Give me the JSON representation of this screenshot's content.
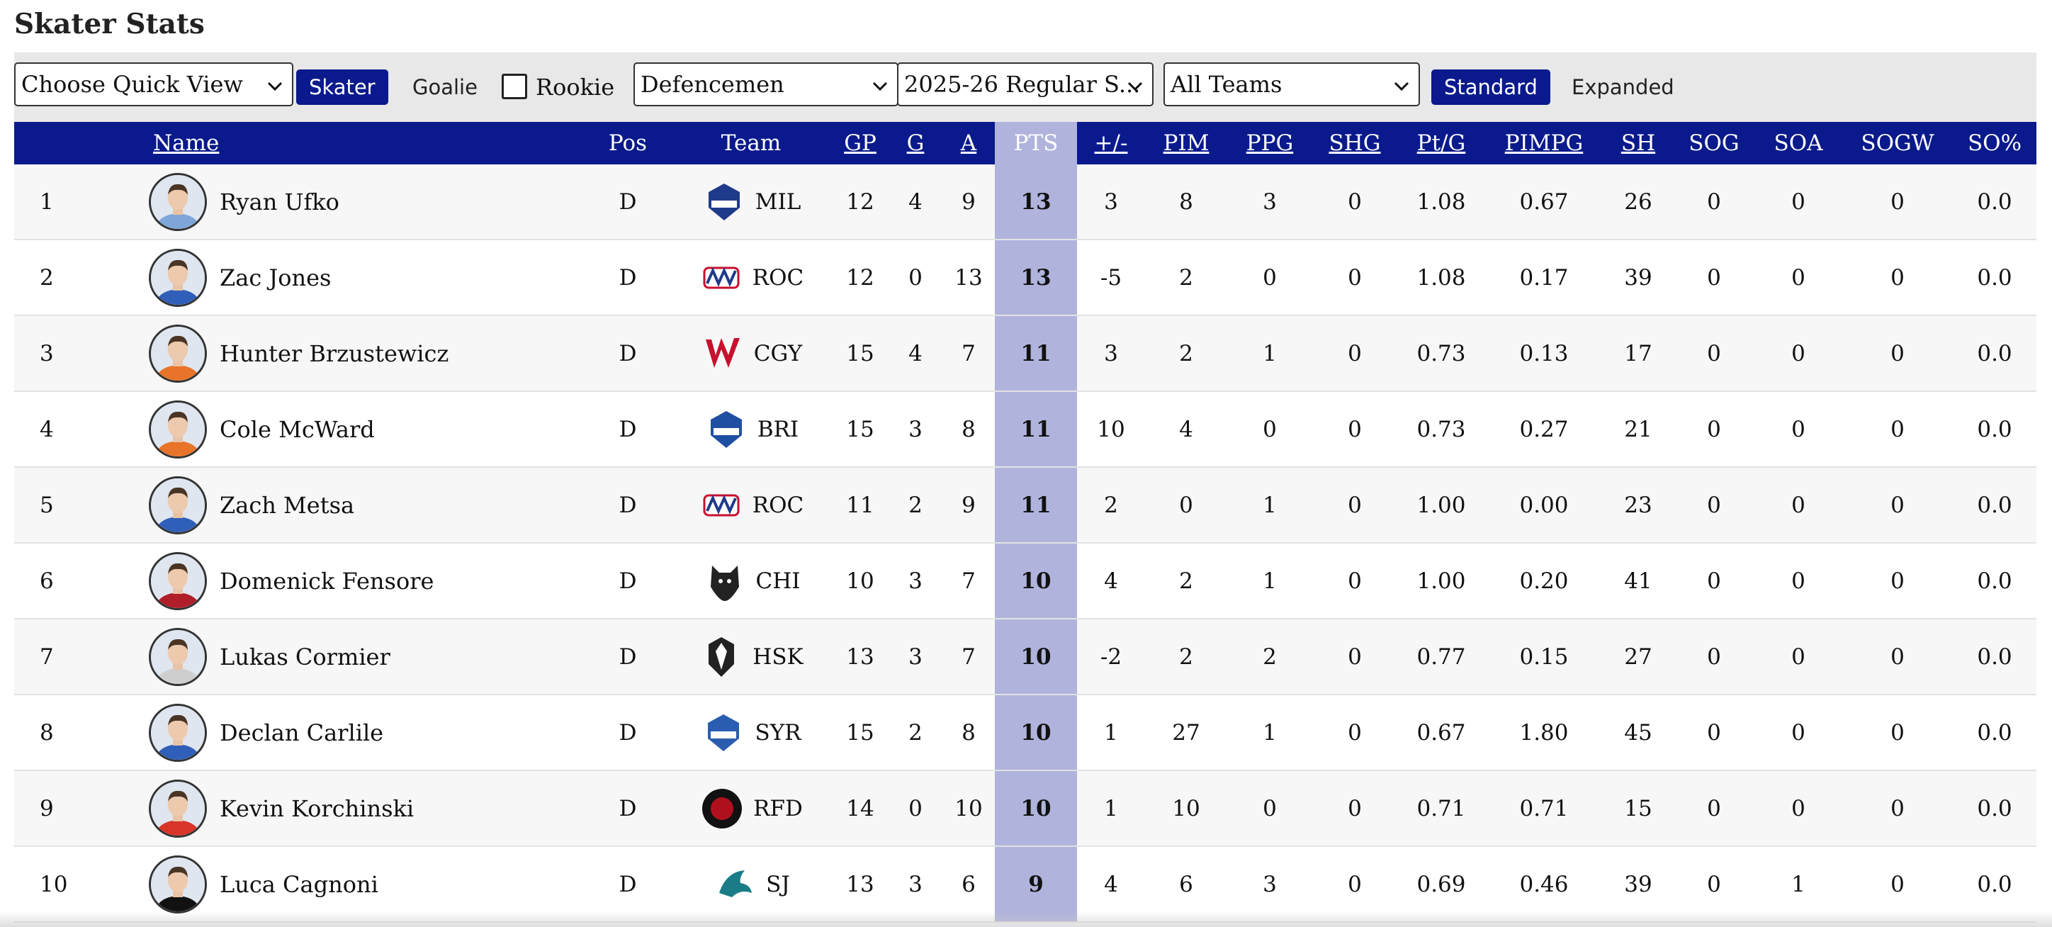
{
  "page_title": "Skater Stats",
  "toolbar": {
    "quick_view": "Choose Quick View",
    "skater_label": "Skater",
    "goalie_label": "Goalie",
    "rookie_label": "Rookie",
    "position": "Defencemen",
    "season": "2025-26 Regular S...",
    "teams": "All Teams",
    "standard_label": "Standard",
    "expanded_label": "Expanded"
  },
  "table": {
    "columns": [
      "",
      "Name",
      "Pos",
      "Team",
      "GP",
      "G",
      "A",
      "PTS",
      "+/-",
      "PIM",
      "PPG",
      "SHG",
      "Pt/G",
      "PIMPG",
      "SH",
      "SOG",
      "SOA",
      "SOGW",
      "SO%"
    ],
    "rows": [
      {
        "rank": "1",
        "name": "Ryan Ufko",
        "pos": "D",
        "team": "MIL",
        "gp": "12",
        "g": "4",
        "a": "9",
        "pts": "13",
        "pm": "3",
        "pim": "8",
        "ppg": "3",
        "shg": "0",
        "ptg": "1.08",
        "pimpg": "0.67",
        "sh": "26",
        "sog": "0",
        "soa": "0",
        "sogw": "0",
        "sopct": "0.0"
      },
      {
        "rank": "2",
        "name": "Zac Jones",
        "pos": "D",
        "team": "ROC",
        "gp": "12",
        "g": "0",
        "a": "13",
        "pts": "13",
        "pm": "-5",
        "pim": "2",
        "ppg": "0",
        "shg": "0",
        "ptg": "1.08",
        "pimpg": "0.17",
        "sh": "39",
        "sog": "0",
        "soa": "0",
        "sogw": "0",
        "sopct": "0.0"
      },
      {
        "rank": "3",
        "name": "Hunter Brzustewicz",
        "pos": "D",
        "team": "CGY",
        "gp": "15",
        "g": "4",
        "a": "7",
        "pts": "11",
        "pm": "3",
        "pim": "2",
        "ppg": "1",
        "shg": "0",
        "ptg": "0.73",
        "pimpg": "0.13",
        "sh": "17",
        "sog": "0",
        "soa": "0",
        "sogw": "0",
        "sopct": "0.0"
      },
      {
        "rank": "4",
        "name": "Cole McWard",
        "pos": "D",
        "team": "BRI",
        "gp": "15",
        "g": "3",
        "a": "8",
        "pts": "11",
        "pm": "10",
        "pim": "4",
        "ppg": "0",
        "shg": "0",
        "ptg": "0.73",
        "pimpg": "0.27",
        "sh": "21",
        "sog": "0",
        "soa": "0",
        "sogw": "0",
        "sopct": "0.0"
      },
      {
        "rank": "5",
        "name": "Zach Metsa",
        "pos": "D",
        "team": "ROC",
        "gp": "11",
        "g": "2",
        "a": "9",
        "pts": "11",
        "pm": "2",
        "pim": "0",
        "ppg": "1",
        "shg": "0",
        "ptg": "1.00",
        "pimpg": "0.00",
        "sh": "23",
        "sog": "0",
        "soa": "0",
        "sogw": "0",
        "sopct": "0.0"
      },
      {
        "rank": "6",
        "name": "Domenick Fensore",
        "pos": "D",
        "team": "CHI",
        "gp": "10",
        "g": "3",
        "a": "7",
        "pts": "10",
        "pm": "4",
        "pim": "2",
        "ppg": "1",
        "shg": "0",
        "ptg": "1.00",
        "pimpg": "0.20",
        "sh": "41",
        "sog": "0",
        "soa": "0",
        "sogw": "0",
        "sopct": "0.0"
      },
      {
        "rank": "7",
        "name": "Lukas Cormier",
        "pos": "D",
        "team": "HSK",
        "gp": "13",
        "g": "3",
        "a": "7",
        "pts": "10",
        "pm": "-2",
        "pim": "2",
        "ppg": "2",
        "shg": "0",
        "ptg": "0.77",
        "pimpg": "0.15",
        "sh": "27",
        "sog": "0",
        "soa": "0",
        "sogw": "0",
        "sopct": "0.0"
      },
      {
        "rank": "8",
        "name": "Declan Carlile",
        "pos": "D",
        "team": "SYR",
        "gp": "15",
        "g": "2",
        "a": "8",
        "pts": "10",
        "pm": "1",
        "pim": "27",
        "ppg": "1",
        "shg": "0",
        "ptg": "0.67",
        "pimpg": "1.80",
        "sh": "45",
        "sog": "0",
        "soa": "0",
        "sogw": "0",
        "sopct": "0.0"
      },
      {
        "rank": "9",
        "name": "Kevin Korchinski",
        "pos": "D",
        "team": "RFD",
        "gp": "14",
        "g": "0",
        "a": "10",
        "pts": "10",
        "pm": "1",
        "pim": "10",
        "ppg": "0",
        "shg": "0",
        "ptg": "0.71",
        "pimpg": "0.71",
        "sh": "15",
        "sog": "0",
        "soa": "0",
        "sogw": "0",
        "sopct": "0.0"
      },
      {
        "rank": "10",
        "name": "Luca Cagnoni",
        "pos": "D",
        "team": "SJ",
        "gp": "13",
        "g": "3",
        "a": "6",
        "pts": "9",
        "pm": "4",
        "pim": "6",
        "ppg": "3",
        "shg": "0",
        "ptg": "0.69",
        "pimpg": "0.46",
        "sh": "39",
        "sog": "0",
        "soa": "1",
        "sogw": "0",
        "sopct": "0.0"
      }
    ]
  },
  "team_colors": {
    "MIL": "#1f3a8a",
    "ROC": "#c8102e",
    "CGY": "#c8102e",
    "BRI": "#1f4fa0",
    "CHI": "#222222",
    "HSK": "#222222",
    "SYR": "#2a5db0",
    "RFD": "#b0101e",
    "SJ": "#1a7c86"
  },
  "jersey_colors": [
    "#7fa6d8",
    "#2f5fb8",
    "#e8742a",
    "#e8742a",
    "#2f5fb8",
    "#b01e2a",
    "#cfcfcf",
    "#2f5fb8",
    "#d8342a",
    "#111111"
  ],
  "colors": {
    "header_bg": "#0a1a8c",
    "pts_column": "#b0b3dc",
    "toolbar_bg": "#e8e8e8"
  }
}
